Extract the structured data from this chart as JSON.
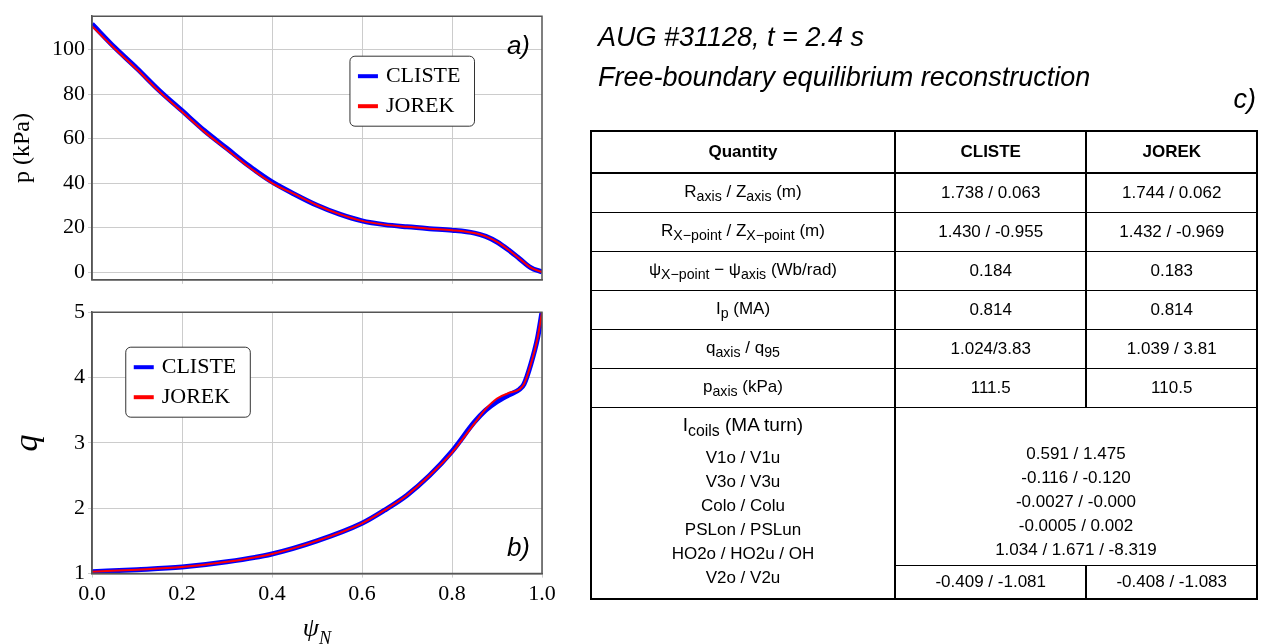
{
  "chart_data": [
    {
      "type": "line",
      "ylabel": "p (kPa)",
      "xlim": [
        0,
        1
      ],
      "xticks": [
        0.2,
        0.4,
        0.6,
        0.8
      ],
      "ylim": [
        -3.5,
        115
      ],
      "yticks": [
        0,
        20,
        40,
        60,
        80,
        100
      ],
      "tick_labels": "y",
      "grid": true,
      "legend": "top right",
      "annotations": [
        "a)"
      ],
      "x": [
        0,
        0.05,
        0.1,
        0.15,
        0.2,
        0.25,
        0.3,
        0.35,
        0.4,
        0.45,
        0.5,
        0.55,
        0.6,
        0.65,
        0.7,
        0.75,
        0.8,
        0.85,
        0.875,
        0.9,
        0.925,
        0.95,
        0.975,
        1
      ],
      "series": [
        {
          "name": "CLISTE",
          "color": "#0000ff",
          "values": [
            111.5,
            101,
            91.5,
            81.5,
            72.5,
            63.5,
            55.5,
            47.5,
            40.5,
            35,
            30,
            26,
            23,
            21.3,
            20.3,
            19.5,
            18.8,
            17.5,
            16,
            13.5,
            10,
            6,
            2,
            0
          ]
        },
        {
          "name": "JOREK",
          "color": "#ff0000",
          "values": [
            110.5,
            100.5,
            91,
            81,
            72,
            63,
            55,
            47,
            40,
            35,
            30,
            26,
            23,
            21.3,
            20.3,
            19.5,
            18.8,
            17.5,
            16,
            13.5,
            10,
            6,
            2,
            0
          ]
        }
      ]
    },
    {
      "type": "line",
      "xlabel": "ψ$_{N}$",
      "ylabel": "q",
      "xlim": [
        0,
        1
      ],
      "xticks": [
        {
          "value": 0,
          "label": "0.0"
        },
        0.2,
        0.4,
        0.6,
        0.8,
        {
          "value": 1,
          "label": "1.0"
        }
      ],
      "ylim": [
        1,
        5
      ],
      "yticks": [
        1,
        2,
        3,
        4,
        5
      ],
      "grid": true,
      "legend": "top left",
      "annotations": [
        "b)"
      ],
      "x": [
        0,
        0.1,
        0.2,
        0.3,
        0.4,
        0.5,
        0.6,
        0.65,
        0.7,
        0.75,
        0.8,
        0.85,
        0.875,
        0.9,
        0.925,
        0.95,
        0.96,
        0.975,
        0.99,
        1
      ],
      "series": [
        {
          "name": "CLISTE",
          "color": "#0000ff",
          "values": [
            1.03,
            1.06,
            1.1,
            1.18,
            1.3,
            1.5,
            1.77,
            1.97,
            2.2,
            2.5,
            2.87,
            3.32,
            3.5,
            3.63,
            3.73,
            3.82,
            3.9,
            4.2,
            4.6,
            5
          ]
        },
        {
          "name": "JOREK",
          "color": "#ff0000",
          "values": [
            1.03,
            1.06,
            1.1,
            1.18,
            1.3,
            1.5,
            1.77,
            1.97,
            2.2,
            2.5,
            2.85,
            3.3,
            3.52,
            3.68,
            3.76,
            3.82,
            3.9,
            4.2,
            4.6,
            5
          ]
        }
      ]
    },
    {
      "type": "other",
      "title": "AUG #31128, t = 2.4 s",
      "subtitle": "Free-boundary equilibrium reconstruction",
      "annotations": [
        "c)",
        "Quantity",
        "CLISTE",
        "JOREK",
        "R$_{axis}$ / Z$_{axis}$ (m)",
        "1.738 / 0.063",
        "1.744 / 0.062",
        "R$_{X−point}$ / Z$_{X−point}$ (m)",
        "1.430 / -0.955",
        "1.432 / -0.969",
        "ψ$_{X−point}$ − ψ$_{axis}$ (Wb/rad)",
        "0.184",
        "0.183",
        "I$_{p}$ (MA)",
        "0.814",
        "0.814",
        "q$_{axis}$ / q$_{95}$",
        "1.024/3.83",
        "1.039 / 3.81",
        "p$_{axis}$ (kPa)",
        "111.5",
        "110.5",
        "I$_{coils}$ (MA turn)",
        "V1o / V1u",
        "V3o / V3u",
        "Colo / Colu",
        "PSLon / PSLun",
        "HO2o / HO2u / OH",
        "V2o / V2u",
        "0.591 / 1.475",
        "-0.116 / -0.120",
        "-0.0027 / -0.000",
        "-0.0005 / 0.002",
        "1.034 / 1.671 / -8.319",
        "-0.409 / -1.081",
        "-0.408 / -1.083"
      ]
    }
  ]
}
